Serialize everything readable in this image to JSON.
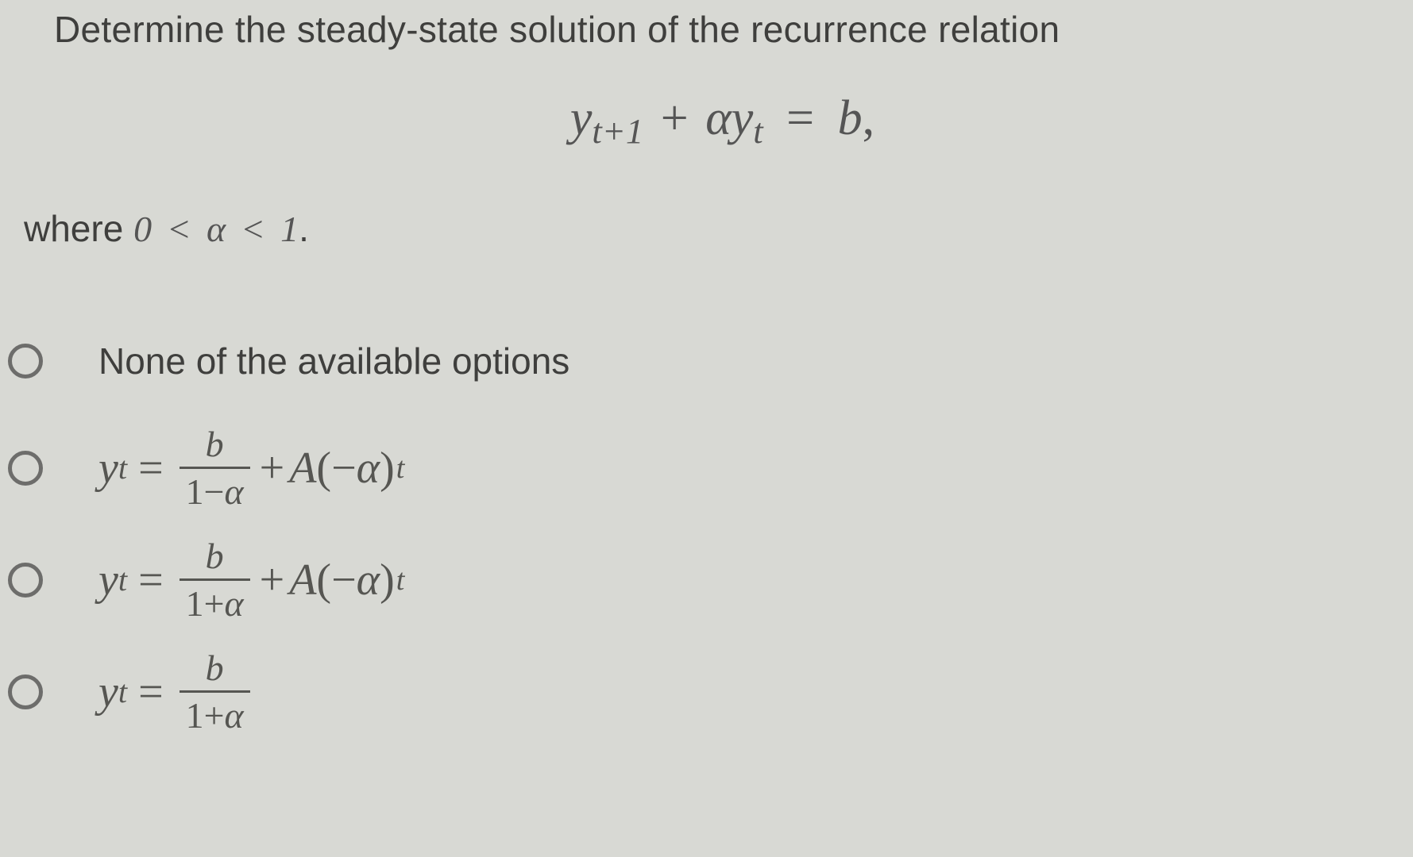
{
  "page": {
    "background_color": "#d8d9d4",
    "text_color": "#3f3f3d",
    "math_color": "#565652",
    "body_font": "Segoe UI",
    "math_font": "Cambria Math",
    "question_fontsize": 46,
    "equation_fontsize": 62,
    "option_math_fontsize": 56,
    "radio_border_color": "#6d6d6b",
    "radio_size": 44
  },
  "question": {
    "text": "Determine the steady-state solution of the recurrence relation"
  },
  "equation": {
    "lhs_y": "y",
    "lhs_sub1": "t+1",
    "plus": "+",
    "alpha": "α",
    "lhs_sub2": "t",
    "eq": "=",
    "rhs": "b",
    "comma": ","
  },
  "condition": {
    "prefix": "where ",
    "zero": "0",
    "lt1": "<",
    "alpha": "α",
    "lt2": "<",
    "one": "1",
    "period": "."
  },
  "options": [
    {
      "type": "text",
      "label": "None of the available options",
      "selected": false
    },
    {
      "type": "math",
      "y": "y",
      "sub": "t",
      "eq": "=",
      "num": "b",
      "den_a": "1",
      "den_op": "−",
      "den_b": "α",
      "plus": "+",
      "A": "A",
      "lp": "(",
      "neg": "−",
      "arg": "α",
      "rp": ")",
      "exp": "t",
      "selected": false
    },
    {
      "type": "math",
      "y": "y",
      "sub": "t",
      "eq": "=",
      "num": "b",
      "den_a": "1",
      "den_op": "+",
      "den_b": "α",
      "plus": "+",
      "A": "A",
      "lp": "(",
      "neg": "−",
      "arg": "α",
      "rp": ")",
      "exp": "t",
      "selected": false
    },
    {
      "type": "math_frac_only",
      "y": "y",
      "sub": "t",
      "eq": "=",
      "num": "b",
      "den_a": "1",
      "den_op": "+",
      "den_b": "α",
      "selected": false
    }
  ]
}
